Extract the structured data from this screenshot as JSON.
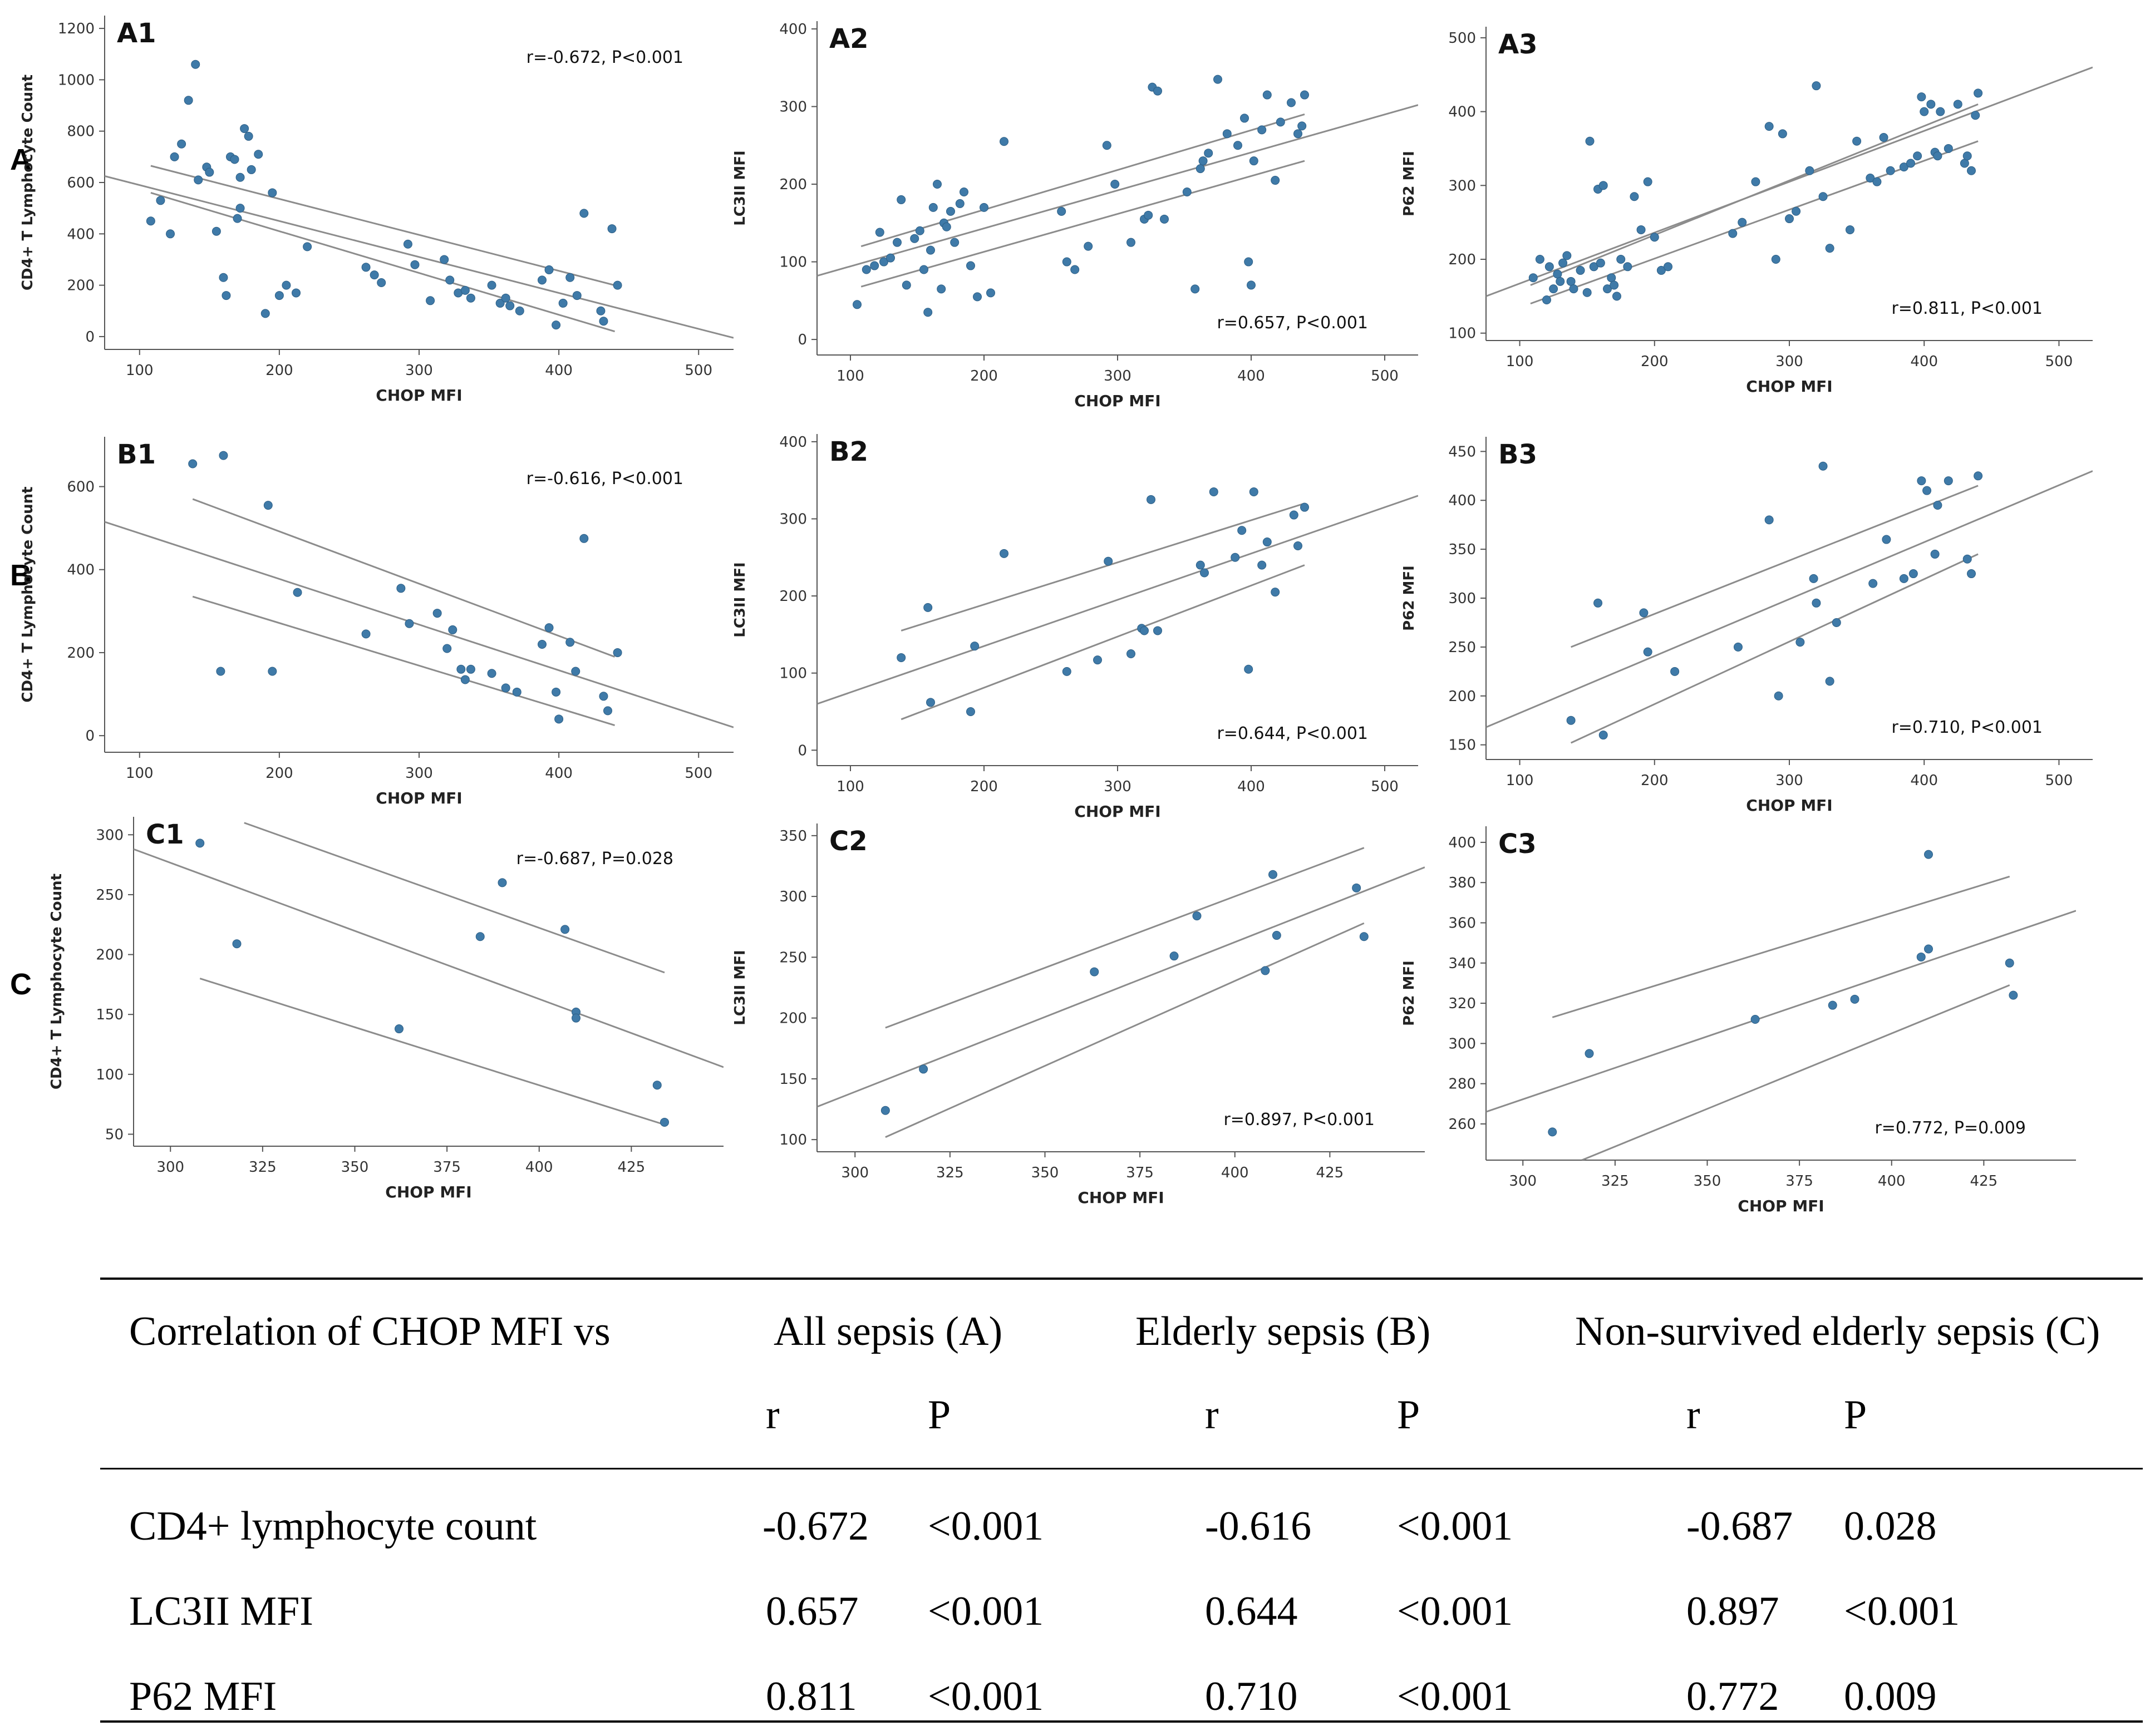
{
  "row_labels": [
    "A",
    "B",
    "C"
  ],
  "chart_data": [
    {
      "id": "A1",
      "type": "scatter",
      "panel_label": "A1",
      "xlabel": "CHOP MFI",
      "ylabel": "CD4+ T Lymphocyte Count",
      "xlim": [
        75,
        525
      ],
      "ylim": [
        -50,
        1250
      ],
      "xticks": [
        100,
        200,
        300,
        400,
        500
      ],
      "yticks": [
        0,
        200,
        400,
        600,
        800,
        1000,
        1200
      ],
      "annotation": "r=-0.672, P<0.001",
      "x": [
        108,
        115,
        122,
        125,
        130,
        135,
        140,
        142,
        148,
        150,
        155,
        160,
        162,
        165,
        168,
        170,
        172,
        172,
        175,
        178,
        180,
        185,
        190,
        195,
        200,
        205,
        212,
        220,
        262,
        268,
        273,
        292,
        297,
        308,
        318,
        322,
        328,
        333,
        337,
        352,
        358,
        362,
        365,
        372,
        388,
        393,
        398,
        403,
        408,
        413,
        418,
        430,
        432,
        438,
        442
      ],
      "y": [
        450,
        530,
        400,
        700,
        750,
        920,
        1060,
        610,
        660,
        640,
        410,
        230,
        160,
        700,
        690,
        460,
        500,
        620,
        810,
        780,
        650,
        710,
        90,
        560,
        160,
        200,
        170,
        350,
        270,
        240,
        210,
        360,
        280,
        140,
        300,
        220,
        170,
        180,
        150,
        200,
        130,
        150,
        120,
        100,
        220,
        260,
        45,
        130,
        230,
        160,
        480,
        100,
        60,
        420,
        200
      ],
      "fit": {
        "x": [
          75,
          525
        ],
        "y": [
          625,
          -5
        ]
      },
      "ci_upper": {
        "x": [
          108,
          440
        ],
        "y": [
          665,
          200
        ]
      },
      "ci_lower": {
        "x": [
          108,
          440
        ],
        "y": [
          560,
          20
        ]
      }
    },
    {
      "id": "A2",
      "type": "scatter",
      "panel_label": "A2",
      "xlabel": "CHOP MFI",
      "ylabel": "LC3II MFI",
      "xlim": [
        75,
        525
      ],
      "ylim": [
        -20,
        410
      ],
      "xticks": [
        100,
        200,
        300,
        400,
        500
      ],
      "yticks": [
        0,
        100,
        200,
        300,
        400
      ],
      "annotation": "r=0.657, P<0.001",
      "x": [
        105,
        112,
        118,
        122,
        125,
        130,
        135,
        138,
        142,
        148,
        152,
        155,
        158,
        160,
        162,
        165,
        168,
        170,
        172,
        175,
        178,
        182,
        185,
        190,
        195,
        200,
        205,
        215,
        258,
        262,
        268,
        278,
        292,
        298,
        310,
        320,
        323,
        326,
        330,
        335,
        352,
        358,
        362,
        364,
        368,
        375,
        382,
        390,
        395,
        398,
        400,
        402,
        408,
        412,
        418,
        422,
        430,
        435,
        438,
        440
      ],
      "y": [
        45,
        90,
        95,
        138,
        100,
        105,
        125,
        180,
        70,
        130,
        140,
        90,
        35,
        115,
        170,
        200,
        65,
        150,
        145,
        165,
        125,
        175,
        190,
        95,
        55,
        170,
        60,
        255,
        165,
        100,
        90,
        120,
        250,
        200,
        125,
        155,
        160,
        325,
        320,
        155,
        190,
        65,
        220,
        230,
        240,
        335,
        265,
        250,
        285,
        100,
        70,
        230,
        270,
        315,
        205,
        280,
        305,
        265,
        275,
        315
      ],
      "fit": {
        "x": [
          75,
          525
        ],
        "y": [
          82,
          302
        ]
      },
      "ci_upper": {
        "x": [
          108,
          440
        ],
        "y": [
          120,
          290
        ]
      },
      "ci_lower": {
        "x": [
          108,
          440
        ],
        "y": [
          68,
          230
        ]
      }
    },
    {
      "id": "A3",
      "type": "scatter",
      "panel_label": "A3",
      "xlabel": "CHOP MFI",
      "ylabel": "P62 MFI",
      "xlim": [
        75,
        525
      ],
      "ylim": [
        90,
        515
      ],
      "xticks": [
        100,
        200,
        300,
        400,
        500
      ],
      "yticks": [
        100,
        200,
        300,
        400,
        500
      ],
      "annotation": "r=0.811, P<0.001",
      "x": [
        110,
        115,
        120,
        122,
        125,
        128,
        130,
        132,
        135,
        138,
        140,
        145,
        150,
        152,
        155,
        158,
        160,
        162,
        165,
        168,
        170,
        172,
        175,
        180,
        185,
        190,
        195,
        200,
        205,
        210,
        258,
        265,
        275,
        285,
        290,
        295,
        300,
        305,
        315,
        320,
        325,
        330,
        345,
        350,
        360,
        365,
        370,
        375,
        385,
        390,
        395,
        398,
        400,
        405,
        408,
        410,
        412,
        418,
        425,
        430,
        432,
        435,
        438,
        440
      ],
      "y": [
        175,
        200,
        145,
        190,
        160,
        180,
        170,
        195,
        205,
        170,
        160,
        185,
        155,
        360,
        190,
        295,
        195,
        300,
        160,
        175,
        165,
        150,
        200,
        190,
        285,
        240,
        305,
        230,
        185,
        190,
        235,
        250,
        305,
        380,
        200,
        370,
        255,
        265,
        320,
        435,
        285,
        215,
        240,
        360,
        310,
        305,
        365,
        320,
        325,
        330,
        340,
        420,
        400,
        410,
        345,
        340,
        400,
        350,
        410,
        330,
        340,
        320,
        395,
        425
      ],
      "fit": {
        "x": [
          75,
          525
        ],
        "y": [
          150,
          460
        ]
      },
      "ci_upper": {
        "x": [
          108,
          440
        ],
        "y": [
          165,
          410
        ]
      },
      "ci_lower": {
        "x": [
          108,
          440
        ],
        "y": [
          140,
          360
        ]
      }
    },
    {
      "id": "B1",
      "type": "scatter",
      "panel_label": "B1",
      "xlabel": "CHOP MFI",
      "ylabel": "CD4+ T Lymphocyte Count",
      "xlim": [
        75,
        525
      ],
      "ylim": [
        -40,
        720
      ],
      "xticks": [
        100,
        200,
        300,
        400,
        500
      ],
      "yticks": [
        0,
        200,
        400,
        600
      ],
      "annotation": "r=-0.616, P<0.001",
      "x": [
        138,
        158,
        160,
        192,
        195,
        213,
        262,
        287,
        293,
        313,
        320,
        324,
        330,
        333,
        337,
        352,
        362,
        370,
        388,
        393,
        398,
        400,
        408,
        412,
        418,
        432,
        435,
        442
      ],
      "y": [
        655,
        155,
        675,
        555,
        155,
        345,
        245,
        355,
        270,
        295,
        210,
        255,
        160,
        135,
        160,
        150,
        115,
        105,
        220,
        260,
        105,
        40,
        225,
        155,
        475,
        95,
        60,
        200
      ],
      "fit": {
        "x": [
          75,
          525
        ],
        "y": [
          515,
          20
        ]
      },
      "ci_upper": {
        "x": [
          138,
          440
        ],
        "y": [
          570,
          190
        ]
      },
      "ci_lower": {
        "x": [
          138,
          440
        ],
        "y": [
          335,
          25
        ]
      }
    },
    {
      "id": "B2",
      "type": "scatter",
      "panel_label": "B2",
      "xlabel": "CHOP MFI",
      "ylabel": "LC3II MFI",
      "xlim": [
        75,
        525
      ],
      "ylim": [
        -20,
        410
      ],
      "xticks": [
        100,
        200,
        300,
        400,
        500
      ],
      "yticks": [
        0,
        100,
        200,
        300,
        400
      ],
      "annotation": "r=0.644, P<0.001",
      "x": [
        138,
        158,
        160,
        190,
        193,
        215,
        262,
        285,
        293,
        310,
        318,
        320,
        325,
        330,
        362,
        365,
        372,
        388,
        393,
        398,
        402,
        408,
        412,
        418,
        432,
        435,
        440
      ],
      "y": [
        120,
        185,
        62,
        50,
        135,
        255,
        102,
        117,
        245,
        125,
        158,
        155,
        325,
        155,
        240,
        230,
        335,
        250,
        285,
        105,
        335,
        240,
        270,
        205,
        305,
        265,
        315
      ],
      "fit": {
        "x": [
          75,
          525
        ],
        "y": [
          60,
          330
        ]
      },
      "ci_upper": {
        "x": [
          138,
          440
        ],
        "y": [
          155,
          320
        ]
      },
      "ci_lower": {
        "x": [
          138,
          440
        ],
        "y": [
          40,
          240
        ]
      }
    },
    {
      "id": "B3",
      "type": "scatter",
      "panel_label": "B3",
      "xlabel": "CHOP MFI",
      "ylabel": "P62 MFI",
      "xlim": [
        75,
        525
      ],
      "ylim": [
        135,
        465
      ],
      "xticks": [
        100,
        200,
        300,
        400,
        500
      ],
      "yticks": [
        150,
        200,
        250,
        300,
        350,
        400,
        450
      ],
      "annotation": "r=0.710, P<0.001",
      "x": [
        138,
        158,
        162,
        192,
        195,
        215,
        262,
        285,
        292,
        308,
        318,
        320,
        325,
        330,
        335,
        362,
        372,
        385,
        392,
        398,
        402,
        408,
        410,
        418,
        432,
        435,
        440
      ],
      "y": [
        175,
        295,
        160,
        285,
        245,
        225,
        250,
        380,
        200,
        255,
        320,
        295,
        435,
        215,
        275,
        315,
        360,
        320,
        325,
        420,
        410,
        345,
        395,
        420,
        340,
        325,
        425
      ],
      "fit": {
        "x": [
          75,
          525
        ],
        "y": [
          168,
          430
        ]
      },
      "ci_upper": {
        "x": [
          138,
          440
        ],
        "y": [
          250,
          415
        ]
      },
      "ci_lower": {
        "x": [
          138,
          440
        ],
        "y": [
          152,
          345
        ]
      }
    },
    {
      "id": "C1",
      "type": "scatter",
      "panel_label": "C1",
      "xlabel": "CHOP MFI",
      "ylabel": "CD4+ T Lymphocyte Count",
      "xlim": [
        290,
        450
      ],
      "ylim": [
        40,
        315
      ],
      "xticks": [
        300,
        325,
        350,
        375,
        400,
        425
      ],
      "yticks": [
        50,
        100,
        150,
        200,
        250,
        300
      ],
      "annotation": "r=-0.687, P=0.028",
      "x": [
        308,
        318,
        362,
        384,
        390,
        407,
        410,
        410,
        432,
        434
      ],
      "y": [
        293,
        209,
        138,
        215,
        260,
        221,
        152,
        147,
        91,
        60
      ],
      "fit": {
        "x": [
          290,
          450
        ],
        "y": [
          288,
          106
        ]
      },
      "ci_upper": {
        "x": [
          320,
          434
        ],
        "y": [
          310,
          185
        ]
      },
      "ci_lower": {
        "x": [
          308,
          434
        ],
        "y": [
          180,
          58
        ]
      }
    },
    {
      "id": "C2",
      "type": "scatter",
      "panel_label": "C2",
      "xlabel": "CHOP MFI",
      "ylabel": "LC3II MFI",
      "xlim": [
        290,
        450
      ],
      "ylim": [
        90,
        360
      ],
      "xticks": [
        300,
        325,
        350,
        375,
        400,
        425
      ],
      "yticks": [
        100,
        150,
        200,
        250,
        300,
        350
      ],
      "annotation": "r=0.897, P<0.001",
      "x": [
        308,
        318,
        363,
        384,
        390,
        408,
        410,
        411,
        432,
        434
      ],
      "y": [
        124,
        158,
        238,
        251,
        284,
        239,
        318,
        268,
        307,
        267
      ],
      "fit": {
        "x": [
          290,
          450
        ],
        "y": [
          127,
          324
        ]
      },
      "ci_upper": {
        "x": [
          308,
          434
        ],
        "y": [
          192,
          340
        ]
      },
      "ci_lower": {
        "x": [
          308,
          434
        ],
        "y": [
          102,
          278
        ]
      }
    },
    {
      "id": "C3",
      "type": "scatter",
      "panel_label": "C3",
      "xlabel": "CHOP MFI",
      "ylabel": "P62 MFI",
      "xlim": [
        290,
        450
      ],
      "ylim": [
        242,
        408
      ],
      "xticks": [
        300,
        325,
        350,
        375,
        400,
        425
      ],
      "yticks": [
        260,
        280,
        300,
        320,
        340,
        360,
        380,
        400
      ],
      "annotation": "r=0.772, P=0.009",
      "x": [
        308,
        318,
        363,
        384,
        390,
        408,
        410,
        410,
        432,
        433
      ],
      "y": [
        256,
        295,
        312,
        319,
        322,
        343,
        347,
        394,
        340,
        324
      ],
      "fit": {
        "x": [
          290,
          450
        ],
        "y": [
          266,
          366
        ]
      },
      "ci_upper": {
        "x": [
          308,
          432
        ],
        "y": [
          313,
          383
        ]
      },
      "ci_lower": {
        "x": [
          316,
          432
        ],
        "y": [
          242,
          329
        ]
      }
    }
  ],
  "table": {
    "header_label": "Correlation of CHOP MFI vs",
    "groups": [
      "All sepsis (A)",
      "Elderly sepsis (B)",
      "Non-survived elderly sepsis (C)"
    ],
    "subheaders": [
      "r",
      "P",
      "r",
      "P",
      "r",
      "P"
    ],
    "rows": [
      {
        "label": "CD4+ lymphocyte count",
        "cells": [
          "-0.672",
          "<0.001",
          "-0.616",
          "<0.001",
          "-0.687",
          "0.028"
        ]
      },
      {
        "label": "LC3II MFI",
        "cells": [
          "0.657",
          "<0.001",
          "0.644",
          "<0.001",
          "0.897",
          "<0.001"
        ]
      },
      {
        "label": "P62 MFI",
        "cells": [
          "0.811",
          "<0.001",
          "0.710",
          "<0.001",
          "0.772",
          "0.009"
        ]
      }
    ]
  }
}
